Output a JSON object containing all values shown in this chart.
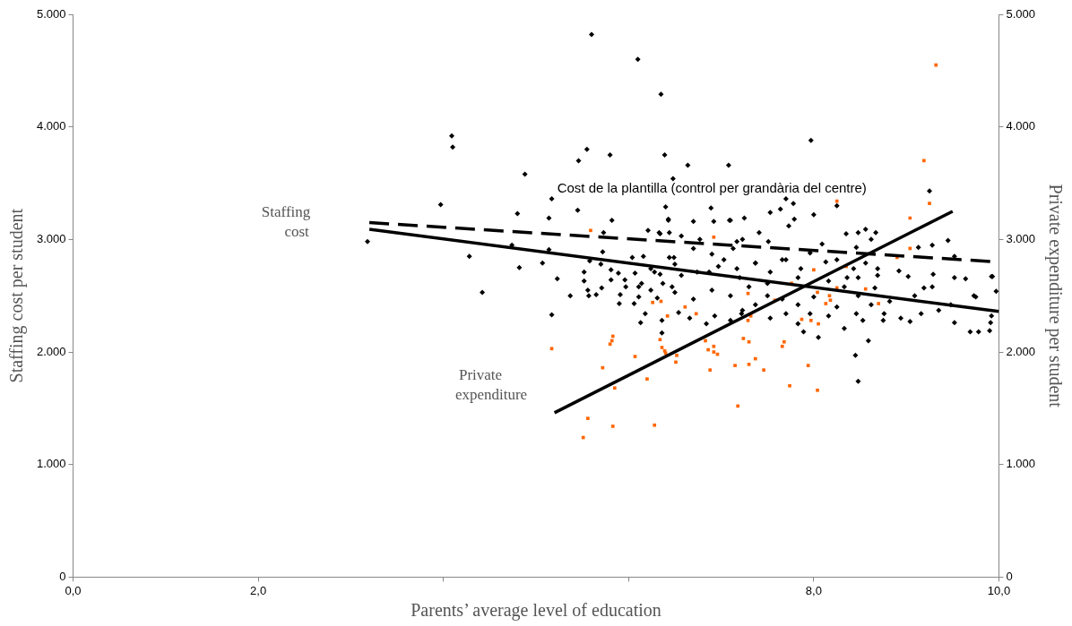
{
  "chart_data": {
    "type": "scatter",
    "xlabel": "Parents’ average level of education",
    "ylabel": "Staffing cost per student",
    "y2label": "Private expenditure per student",
    "xlim": [
      0,
      10
    ],
    "xticks": [
      {
        "value": 0,
        "label": "0,0"
      },
      {
        "value": 2,
        "label": "2,0"
      },
      {
        "value": 4,
        "label": null
      },
      {
        "value": 6,
        "label": null
      },
      {
        "value": 8,
        "label": "8,0"
      },
      {
        "value": 10,
        "label": "10,0"
      }
    ],
    "ylim": [
      0,
      5000
    ],
    "yticks": [
      {
        "value": 0,
        "label": "0"
      },
      {
        "value": 1000,
        "label": "1.000"
      },
      {
        "value": 2000,
        "label": "2.000"
      },
      {
        "value": 3000,
        "label": "3.000"
      },
      {
        "value": 4000,
        "label": "4.000"
      },
      {
        "value": 5000,
        "label": "5.000"
      }
    ],
    "y2lim": [
      0,
      5000
    ],
    "y2ticks": [
      {
        "value": 0,
        "label": "0"
      },
      {
        "value": 1000,
        "label": "1.000"
      },
      {
        "value": 2000,
        "label": "2.000"
      },
      {
        "value": 3000,
        "label": "3.000"
      },
      {
        "value": 4000,
        "label": "4.000"
      },
      {
        "value": 5000,
        "label": "5.000"
      }
    ],
    "grid": false,
    "legend": false,
    "annotations": [
      "Staffing cost",
      "Private expenditure",
      "Cost de la plantilla (control per grandària del centre)"
    ],
    "series": [
      {
        "type": "scatter",
        "marker": "diamond",
        "color": "#000000",
        "x": [
          5.6,
          6.1,
          6.35,
          4.09,
          4.1,
          5.55,
          5.8,
          6.39,
          5.46,
          4.88,
          6.48,
          5.17,
          6.4,
          3.97,
          4.8,
          5.14,
          5.45,
          5.82,
          6.43,
          3.18,
          4.28,
          4.74,
          5.14,
          4.82,
          5.07,
          4.42,
          5.23,
          5.37,
          5.52,
          5.72,
          5.73,
          6.21,
          6.33,
          6.44,
          6.49,
          6.16,
          6.04,
          5.58,
          5.7,
          5.52,
          5.56,
          5.65,
          5.71,
          5.81,
          5.89,
          6.07,
          6.28,
          6.34,
          5.81,
          5.96,
          6.11,
          6.24,
          6.47,
          5.91,
          6.11,
          6.31,
          5.17,
          5.57,
          5.9,
          6.06,
          6.13,
          6.18,
          6.36,
          6.36,
          6.54,
          6.66,
          6.84,
          6.93,
          7.1,
          7.22,
          6.37,
          6.5,
          6.7,
          6.9,
          7.1,
          7.3,
          6.14,
          5.97,
          6.74,
          6.97,
          7.17,
          6.57,
          6.24,
          6.44,
          6.7,
          6.9,
          7.13,
          6.57,
          6.77,
          6.34,
          7.17,
          6.7,
          7.1,
          6.92,
          6.43,
          6.64,
          7.08,
          7.97,
          6.89,
          7.7,
          7.78,
          7.64,
          7.53,
          7.79,
          7.73,
          8.0,
          8.25,
          9.25,
          8.35,
          8.48,
          8.56,
          8.67,
          9.45,
          7.25,
          7.09,
          7.41,
          7.51,
          7.23,
          8.09,
          8.46,
          9.13,
          9.93,
          9.97,
          9.64,
          9.52,
          9.29,
          9.02,
          8.92,
          8.56,
          8.25,
          7.96,
          7.7,
          7.37,
          7.03,
          6.5,
          6.87,
          7.2,
          7.53,
          7.86,
          8.36,
          8.69,
          9.19,
          9.75,
          8.48,
          8.45,
          8.59,
          8.05,
          7.89,
          7.83,
          8.33,
          8.53,
          8.75,
          9.04,
          9.52,
          9.69,
          9.78,
          9.9,
          9.91,
          9.92,
          9.73,
          9.92,
          9.16,
          9.35,
          8.94,
          8.76,
          8.62,
          8.46,
          8.25,
          8.16,
          7.96,
          7.7,
          7.53,
          7.37,
          7.23,
          7.5,
          7.66,
          7.83,
          8.0,
          8.33,
          8.48,
          8.66,
          8.82,
          9.09,
          9.28,
          9.48,
          8.48,
          8.16,
          7.83,
          7.5,
          8.69,
          8.43,
          8.13,
          7.66,
          7.37,
          8.62,
          9.28,
          9.52
        ],
        "values": [
          4820,
          4600,
          4290,
          3920,
          3820,
          3800,
          3750,
          3750,
          3700,
          3580,
          3540,
          3360,
          3290,
          3310,
          3230,
          3190,
          3260,
          3170,
          3170,
          2980,
          2850,
          2950,
          2910,
          2750,
          2790,
          2530,
          2650,
          2500,
          2710,
          2890,
          3060,
          3080,
          3060,
          3060,
          2840,
          2850,
          2840,
          2810,
          2780,
          2630,
          2550,
          2510,
          2570,
          2730,
          2700,
          2700,
          2710,
          2690,
          2640,
          2640,
          2580,
          2550,
          2580,
          2510,
          2490,
          2480,
          2330,
          2500,
          2430,
          2430,
          2260,
          2340,
          2170,
          2280,
          2350,
          2300,
          2250,
          2320,
          2280,
          2340,
          2610,
          2530,
          2470,
          2550,
          2500,
          2580,
          2610,
          2580,
          2710,
          2760,
          2740,
          2680,
          2740,
          2840,
          2920,
          2870,
          2920,
          3030,
          3000,
          3050,
          2980,
          3160,
          3170,
          3160,
          3180,
          3660,
          3660,
          3880,
          3280,
          3360,
          3320,
          3270,
          3240,
          3180,
          3120,
          3220,
          3300,
          3430,
          3050,
          3060,
          3090,
          3060,
          2990,
          3190,
          3170,
          3060,
          2980,
          3000,
          2960,
          2930,
          2930,
          2670,
          2540,
          2650,
          2660,
          2690,
          2670,
          2720,
          2790,
          2820,
          2880,
          2820,
          2790,
          2820,
          2780,
          2710,
          2660,
          2710,
          2740,
          2660,
          2680,
          2570,
          2490,
          1740,
          1970,
          2100,
          2130,
          2180,
          2250,
          2210,
          2280,
          2280,
          2270,
          2260,
          2180,
          2180,
          2190,
          2260,
          2320,
          2500,
          2670,
          2340,
          2370,
          2300,
          2340,
          2420,
          2340,
          2400,
          2320,
          2340,
          2340,
          2300,
          2420,
          2370,
          2500,
          2470,
          2420,
          2490,
          2580,
          2500,
          2570,
          2450,
          2500,
          2580,
          2420,
          2660,
          2630,
          2660,
          2610,
          2740,
          2740,
          2800,
          2820,
          2790,
          3000,
          2950,
          2850
        ]
      },
      {
        "type": "scatter",
        "marker": "square",
        "color": "#ff6600",
        "x": [
          9.32,
          9.19,
          9.25,
          9.04,
          8.25,
          5.59,
          6.92,
          5.17,
          5.56,
          5.83,
          5.51,
          6.28,
          5.85,
          5.72,
          5.83,
          5.82,
          5.8,
          6.07,
          6.2,
          6.34,
          6.36,
          6.39,
          6.4,
          6.52,
          6.51,
          6.26,
          6.35,
          6.42,
          6.61,
          6.73,
          6.83,
          6.86,
          6.92,
          6.92,
          6.96,
          6.88,
          7.18,
          7.15,
          7.3,
          7.24,
          7.3,
          7.29,
          7.29,
          7.37,
          7.46,
          7.74,
          8.04,
          7.94,
          7.66,
          7.68,
          7.87,
          7.97,
          8.05,
          8.0,
          7.76,
          8.04,
          8.17,
          8.18,
          8.13,
          8.25,
          8.35,
          8.56,
          8.7,
          8.9,
          9.04,
          7.58,
          7.32
        ],
        "values": [
          4550,
          3700,
          3320,
          2920,
          3340,
          3080,
          3020,
          2030,
          1410,
          1340,
          1240,
          1350,
          1680,
          1860,
          2140,
          2100,
          2070,
          1960,
          1760,
          2110,
          2040,
          2010,
          1990,
          1970,
          1910,
          2440,
          2450,
          2320,
          2400,
          2340,
          2100,
          2020,
          2050,
          2000,
          1980,
          1840,
          1520,
          1880,
          1890,
          2120,
          2090,
          2520,
          2280,
          1940,
          1840,
          1700,
          1660,
          1880,
          2050,
          2090,
          2290,
          2280,
          2250,
          2730,
          2610,
          2530,
          2500,
          2460,
          2430,
          2570,
          2760,
          2560,
          2430,
          2840,
          3190,
          2460,
          2320
        ]
      },
      {
        "type": "line",
        "marker": "none",
        "line_style": "dashed",
        "color": "#000000",
        "x": [
          3.2,
          10
        ],
        "values": [
          3150,
          2800
        ]
      },
      {
        "type": "line",
        "marker": "none",
        "line_style": "solid",
        "color": "#000000",
        "x": [
          3.2,
          10
        ],
        "values": [
          3090,
          2360
        ]
      },
      {
        "type": "line",
        "marker": "none",
        "line_style": "solid",
        "color": "#000000",
        "x": [
          5.2,
          9.5
        ],
        "values": [
          1460,
          3250
        ]
      }
    ]
  }
}
